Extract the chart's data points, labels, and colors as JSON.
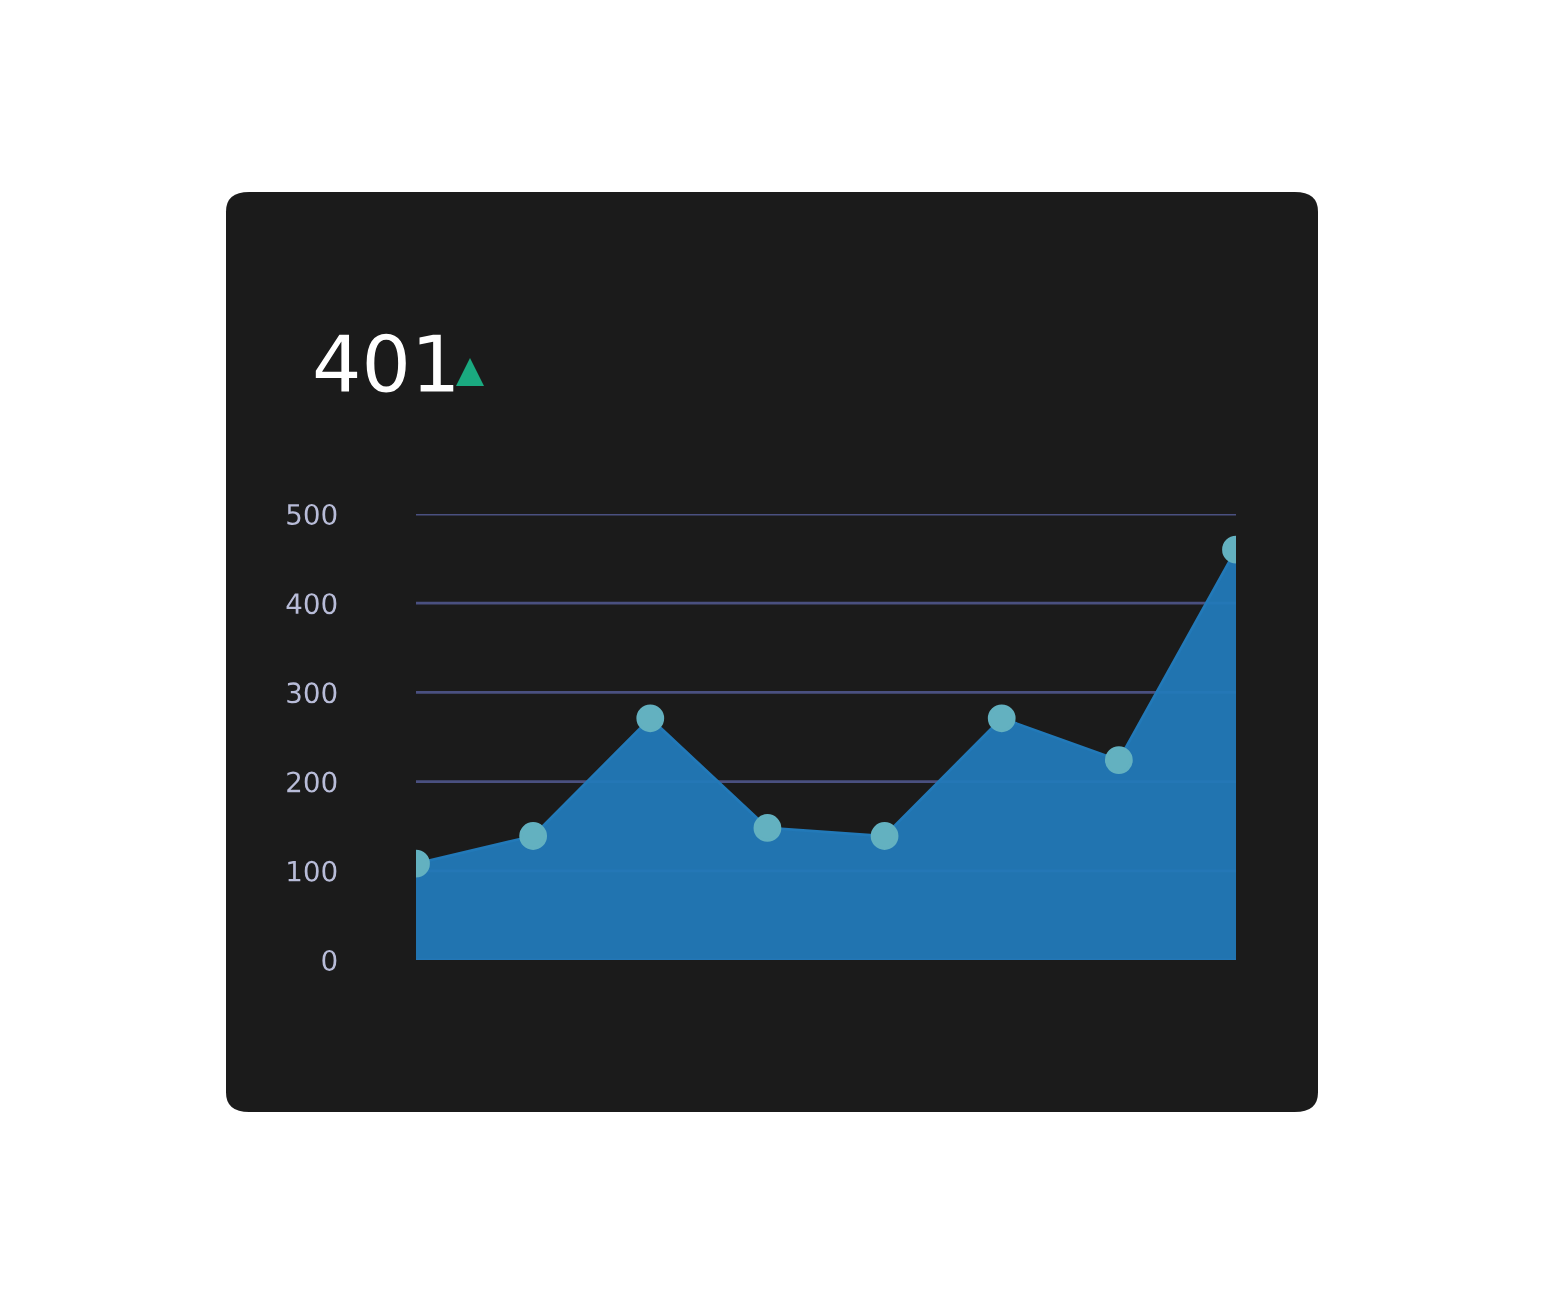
{
  "chart_data": {
    "type": "area",
    "title": "401",
    "categories": [
      null,
      null,
      null,
      null,
      null,
      null,
      null,
      null
    ],
    "series": [
      {
        "color": "#2279b8",
        "values": [
          108,
          139,
          271,
          148,
          139,
          271,
          224,
          460
        ]
      }
    ],
    "ylim": [
      0,
      500
    ],
    "yticks": [
      0,
      100,
      200,
      300,
      400,
      500
    ],
    "grid": "y",
    "marker": "circle",
    "tick_labels": "y"
  }
}
